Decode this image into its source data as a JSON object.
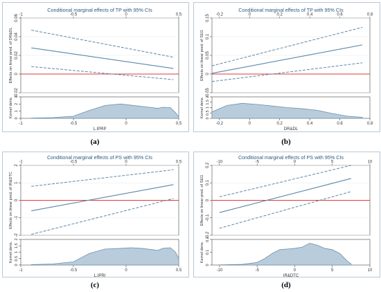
{
  "colors": {
    "main_line": "#5a87a8",
    "ci_line": "#5a87a8",
    "zero_line": "#e0383a",
    "density_fill": "#b9ccdc",
    "density_stroke": "#6e90ab",
    "axis": "#444444",
    "grid": "#e3e8ee",
    "title": "#2d5a7d"
  },
  "panels": [
    {
      "panel_label": "(a)",
      "chart_data": {
        "type": "line",
        "title": "Conditional marginal effects of TP with 95% CIs",
        "ylabel": "Effects on linear pred. of DR&DL",
        "xlabel": "L.IPRP",
        "density_ylabel": "Kernel dens.",
        "xlim": [
          -1,
          0.5
        ],
        "ylim": [
          -0.02,
          0.06
        ],
        "top_ticks": [
          "-1",
          "-0.5",
          "0",
          "0.5"
        ],
        "top_tick_values": [
          -1,
          -0.5,
          0,
          0.5
        ],
        "bottom_ticks": [
          "-1",
          "-0.5",
          "0",
          "0.5"
        ],
        "bottom_tick_values": [
          -1,
          -0.5,
          0,
          0.5
        ],
        "y_ticks": [
          "-0.02",
          "0",
          "0.02",
          "0.04",
          "0.06"
        ],
        "y_tick_values": [
          -0.02,
          0,
          0.02,
          0.04,
          0.06
        ],
        "density_ylim": [
          0,
          3
        ],
        "density_ticks": [
          "0",
          "1",
          "2",
          "3"
        ],
        "density_tick_values": [
          0,
          1,
          2,
          3
        ],
        "zero_line": 0,
        "x": [
          -0.9,
          0.45
        ],
        "series": [
          {
            "role": "estimate",
            "values": [
              0.028,
              0.006
            ]
          },
          {
            "role": "upper_ci",
            "values": [
              0.047,
              0.018
            ]
          },
          {
            "role": "lower_ci",
            "values": [
              0.008,
              -0.006
            ]
          }
        ],
        "density": {
          "x": [
            -0.9,
            -0.7,
            -0.5,
            -0.35,
            -0.2,
            -0.05,
            0.1,
            0.25,
            0.3,
            0.35,
            0.42,
            0.47,
            0.5
          ],
          "y": [
            0.03,
            0.1,
            0.3,
            1.1,
            1.8,
            2.0,
            1.75,
            1.5,
            1.4,
            1.55,
            1.5,
            0.8,
            0.2
          ]
        }
      }
    },
    {
      "panel_label": "(b)",
      "chart_data": {
        "type": "line",
        "title": "Conditional marginal effects of TP with 95% CIs",
        "ylabel": "Effects on linear pred. of SEG",
        "xlabel": "DR&DL",
        "density_ylabel": "Kernel dens.",
        "xlim": [
          -0.25,
          0.8
        ],
        "ylim": [
          -0.05,
          0.15
        ],
        "top_ticks": [
          "-0.2",
          "0",
          "0.2",
          "0.4",
          "0.6",
          "0.8"
        ],
        "top_tick_values": [
          -0.2,
          0,
          0.2,
          0.4,
          0.6,
          0.8
        ],
        "bottom_ticks": [
          "-0.2",
          "0",
          "0.2",
          "0.4",
          "0.6",
          "0.8"
        ],
        "bottom_tick_values": [
          -0.2,
          0,
          0.2,
          0.4,
          0.6,
          0.8
        ],
        "y_ticks": [
          "-0.05",
          "0",
          "0.05",
          "0.1",
          "0.15"
        ],
        "y_tick_values": [
          -0.05,
          0,
          0.05,
          0.1,
          0.15
        ],
        "density_ylim": [
          0,
          2
        ],
        "density_ticks": [
          "0",
          "0.5",
          "1",
          "1.5",
          "2"
        ],
        "density_tick_values": [
          0,
          0.5,
          1,
          1.5,
          2
        ],
        "zero_line": 0,
        "x": [
          -0.25,
          0.75
        ],
        "series": [
          {
            "role": "estimate",
            "values": [
              0.002,
              0.078
            ]
          },
          {
            "role": "upper_ci",
            "values": [
              0.022,
              0.125
            ]
          },
          {
            "role": "lower_ci",
            "values": [
              -0.02,
              0.03
            ]
          }
        ],
        "density": {
          "x": [
            -0.25,
            -0.15,
            -0.05,
            0.05,
            0.15,
            0.25,
            0.35,
            0.45,
            0.55,
            0.65,
            0.75
          ],
          "y": [
            0.6,
            1.2,
            1.4,
            1.3,
            1.15,
            1.0,
            0.9,
            0.75,
            0.45,
            0.2,
            0.1
          ]
        }
      }
    },
    {
      "panel_label": "(c)",
      "chart_data": {
        "type": "line",
        "title": "Conditional marginal effects of PS with 95% CIs",
        "ylabel": "Effects on linear pred. of IR&DTC",
        "xlabel": "L.IPRI",
        "density_ylabel": "Kernel dens.",
        "xlim": [
          -1,
          0.5
        ],
        "ylim": [
          -2,
          2
        ],
        "top_ticks": [
          "-1",
          "-0.5",
          "0",
          "0.5"
        ],
        "top_tick_values": [
          -1,
          -0.5,
          0,
          0.5
        ],
        "bottom_ticks": [
          "-1",
          "-0.5",
          "0",
          "0.5"
        ],
        "bottom_tick_values": [
          -1,
          -0.5,
          0,
          0.5
        ],
        "y_ticks": [
          "-2",
          "-1",
          "0",
          "1",
          "2"
        ],
        "y_tick_values": [
          -2,
          -1,
          0,
          1,
          2
        ],
        "density_ylim": [
          0,
          2
        ],
        "density_ticks": [
          "0",
          "0.5",
          "1",
          "1.5",
          "2"
        ],
        "density_tick_values": [
          0,
          0.5,
          1,
          1.5,
          2
        ],
        "zero_line": 0,
        "x": [
          -0.9,
          0.45
        ],
        "series": [
          {
            "role": "estimate",
            "values": [
              -0.6,
              0.9
            ]
          },
          {
            "role": "upper_ci",
            "values": [
              0.8,
              1.75
            ]
          },
          {
            "role": "lower_ci",
            "values": [
              -1.95,
              0.1
            ]
          }
        ],
        "density": {
          "x": [
            -0.9,
            -0.7,
            -0.5,
            -0.35,
            -0.2,
            -0.05,
            0.05,
            0.15,
            0.25,
            0.3,
            0.35,
            0.42,
            0.47,
            0.5
          ],
          "y": [
            0.03,
            0.08,
            0.25,
            0.9,
            1.25,
            1.3,
            1.35,
            1.3,
            1.2,
            1.15,
            1.3,
            1.35,
            1.0,
            0.5
          ]
        }
      }
    },
    {
      "panel_label": "(d)",
      "chart_data": {
        "type": "line",
        "title": "Conditional marginal effects of PS with 95% CIs",
        "ylabel": "Effects on linear pred. of SEG",
        "xlabel": "IR&DTC",
        "density_ylabel": "Kernel dens.",
        "xlim": [
          -11,
          10
        ],
        "ylim": [
          -0.2,
          0.2
        ],
        "top_ticks": [
          "-10",
          "-5",
          "0",
          "5",
          "10"
        ],
        "top_tick_values": [
          -10,
          -5,
          0,
          5,
          10
        ],
        "bottom_ticks": [
          "-10",
          "-5",
          "0",
          "5",
          "10"
        ],
        "bottom_tick_values": [
          -10,
          -5,
          0,
          5,
          10
        ],
        "y_ticks": [
          "-0.2",
          "-0.1",
          "0",
          "0.1",
          "0.2"
        ],
        "y_tick_values": [
          -0.2,
          -0.1,
          0,
          0.1,
          0.2
        ],
        "density_ylim": [
          0,
          0.2
        ],
        "density_ticks": [
          "0",
          "0.1",
          "0.2"
        ],
        "density_tick_values": [
          0,
          0.1,
          0.2
        ],
        "zero_line": 0,
        "x": [
          -10,
          7.5
        ],
        "series": [
          {
            "role": "estimate",
            "values": [
              -0.07,
              0.125
            ]
          },
          {
            "role": "upper_ci",
            "values": [
              0.02,
              0.2
            ]
          },
          {
            "role": "lower_ci",
            "values": [
              -0.16,
              0.05
            ]
          }
        ],
        "density": {
          "x": [
            -10,
            -7,
            -5,
            -4,
            -3,
            -2,
            -1,
            0,
            1,
            2,
            3,
            4,
            5,
            6,
            7,
            7.5
          ],
          "y": [
            0.001,
            0.005,
            0.02,
            0.05,
            0.09,
            0.12,
            0.125,
            0.13,
            0.14,
            0.17,
            0.155,
            0.13,
            0.12,
            0.09,
            0.03,
            0.01
          ]
        }
      }
    }
  ]
}
